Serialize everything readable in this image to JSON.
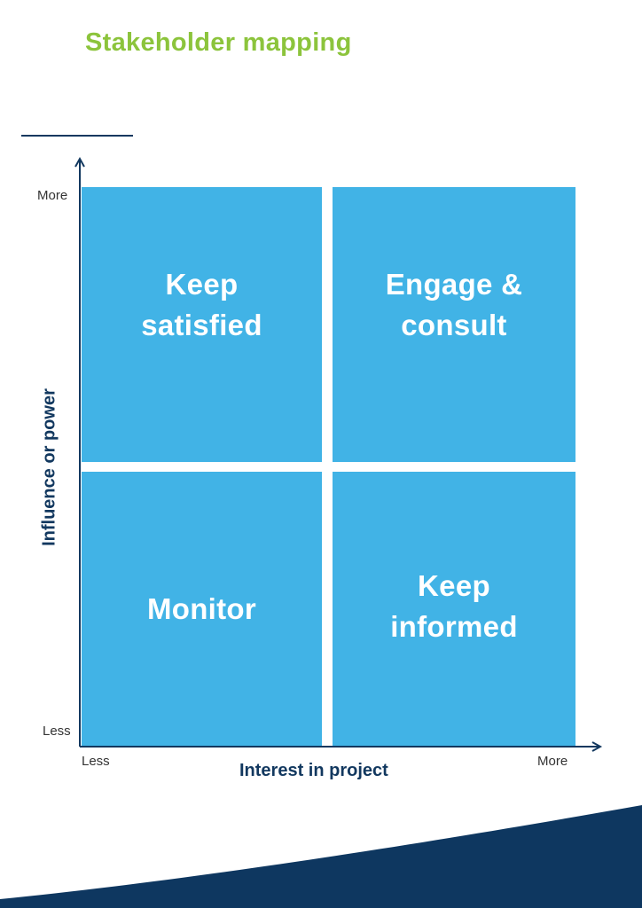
{
  "header": {
    "title": "Stakeholder mapping"
  },
  "colors": {
    "title": "#8cc43c",
    "quadrant": "#41b3e6",
    "axis": "#12385f",
    "wave": "#0e3760"
  },
  "axes": {
    "y_label": "Influence or power",
    "x_label": "Interest in project",
    "y_high": "More",
    "y_low": "Less",
    "x_low": "Less",
    "x_high": "More"
  },
  "quadrants": {
    "top_left": {
      "line1": "Keep",
      "line2": "satisfied"
    },
    "top_right": {
      "line1": "Engage &",
      "line2": "consult"
    },
    "bottom_left": {
      "line1": "Monitor"
    },
    "bottom_right": {
      "line1": "Keep",
      "line2": "informed"
    }
  }
}
